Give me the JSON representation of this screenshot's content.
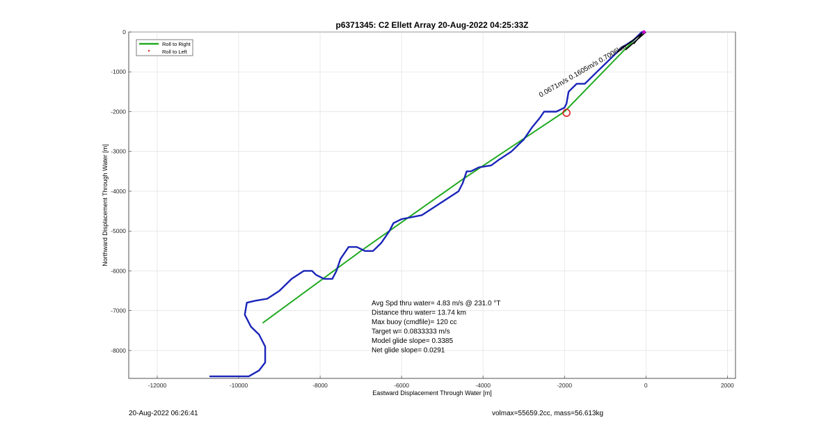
{
  "chart_data": {
    "type": "line",
    "title": "p6371345: C2 Ellett Array 20-Aug-2022 04:25:33Z",
    "xlabel": "Eastward Displacement Through Water [m]",
    "ylabel": "Northward Displacement Through Water [m]",
    "xlim": [
      -12700,
      2200
    ],
    "ylim": [
      -8700,
      0
    ],
    "x_ticks": [
      -12000,
      -10000,
      -8000,
      -6000,
      -4000,
      -2000,
      0,
      2000
    ],
    "x_tick_labels": [
      "-12000",
      "-10000",
      "-8000",
      "-6000",
      "-4000",
      "-2000",
      "0",
      "2000"
    ],
    "y_ticks": [
      0,
      -1000,
      -2000,
      -3000,
      -4000,
      -5000,
      -6000,
      -7000,
      -8000
    ],
    "y_tick_labels": [
      "0",
      "-1000",
      "-2000",
      "-3000",
      "-4000",
      "-5000",
      "-6000",
      "-7000",
      "-8000"
    ],
    "grid": true,
    "legend_position": "top-left",
    "legend": [
      {
        "name": "Roll to Right",
        "color": "#22aa22",
        "marker": "line"
      },
      {
        "name": "Roll to Left",
        "color": "#dd2222",
        "marker": "dot"
      }
    ],
    "series": [
      {
        "name": "Roll to Right",
        "color": "#22aa22",
        "x": [
          -100,
          -2000,
          -4500,
          -7000,
          -9400
        ],
        "y": [
          0,
          -2000,
          -3700,
          -5500,
          -7300
        ]
      },
      {
        "color": "#1a24b8",
        "x": [
          -100,
          -300,
          -600,
          -900,
          -1200,
          -1400,
          -1500,
          -1700,
          -1900,
          -1950,
          -2000,
          -2200,
          -2500,
          -2600,
          -2800,
          -3000,
          -3100,
          -3300,
          -3600,
          -3800,
          -4100,
          -4300,
          -4400,
          -4500,
          -4600,
          -4900,
          -5200,
          -5500,
          -6000,
          -6200,
          -6300,
          -6500,
          -6700,
          -6900,
          -7100,
          -7300,
          -7500,
          -7600,
          -7700,
          -7900,
          -8100,
          -8200,
          -8400,
          -8700,
          -9000,
          -9300,
          -9600,
          -9800,
          -9850,
          -9700,
          -9500,
          -9350,
          -9350,
          -9500,
          -9750,
          -10000,
          -10300,
          -10700
        ],
        "y": [
          0,
          -200,
          -400,
          -700,
          -1000,
          -1200,
          -1300,
          -1300,
          -1500,
          -1800,
          -1900,
          -2000,
          -2000,
          -2150,
          -2400,
          -2700,
          -2800,
          -3000,
          -3200,
          -3350,
          -3400,
          -3500,
          -3500,
          -3800,
          -4000,
          -4200,
          -4400,
          -4600,
          -4700,
          -4800,
          -5000,
          -5300,
          -5500,
          -5500,
          -5400,
          -5400,
          -5700,
          -6000,
          -6200,
          -6200,
          -6100,
          -6000,
          -6000,
          -6200,
          -6500,
          -6700,
          -6750,
          -6800,
          -7100,
          -7400,
          -7600,
          -7900,
          -8300,
          -8500,
          -8650,
          -8650,
          -8650,
          -8650
        ]
      }
    ],
    "annotations": [
      {
        "text": "Avg Spd thru water=  4.83 m/s @ 231.0 °T"
      },
      {
        "text": "Distance thru water= 13.74 km"
      },
      {
        "text": "Max buoy (cmdfile)= 120 cc"
      },
      {
        "text": "Target w= 0.0833333 m/s"
      },
      {
        "text": "Model glide slope= 0.3385"
      },
      {
        "text": "Net glide slope= 0.0291"
      }
    ],
    "rotated_label": "0.0671m/s 0.1605m/s 0.7006km",
    "marker_circle": {
      "x": -1950,
      "y": -2030,
      "color": "#dd2222"
    },
    "end_marker": {
      "x": -50,
      "y": 0,
      "color": "#cc00cc"
    },
    "current_vectors": [
      {
        "x0": -700,
        "y0": -500,
        "x1": -50,
        "y1": 0
      },
      {
        "x0": -500,
        "y0": -450,
        "x1": 0,
        "y1": 0
      },
      {
        "x0": -300,
        "y0": -300,
        "x1": -100,
        "y1": -50
      }
    ]
  },
  "footer": {
    "timestamp": "20-Aug-2022 06:26:41",
    "stats": "volmax=55659.2cc, mass=56.613kg"
  }
}
